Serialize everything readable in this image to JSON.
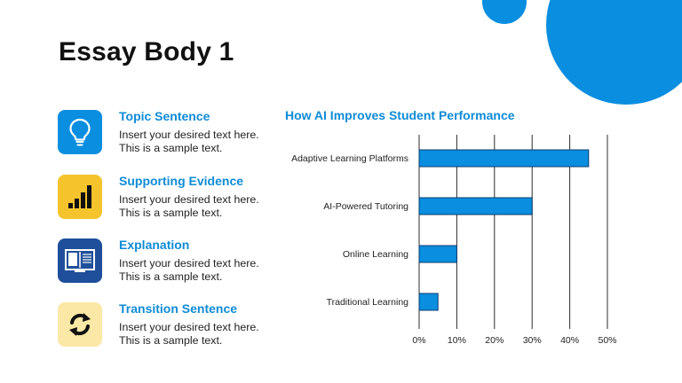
{
  "page": {
    "title": "Essay Body 1"
  },
  "colors": {
    "accent": "#0a8ee0",
    "decor": "#0a8ee0",
    "heading": "#0d8bd6",
    "bar_fill": "#0a8ee0",
    "icon_blue": "#0a8ee0",
    "icon_yellow": "#f5c32c",
    "icon_navy": "#1f4f9a",
    "icon_cream": "#fbe8a6"
  },
  "points": [
    {
      "heading": "Topic Sentence",
      "lines": [
        "Insert your desired text here.",
        "This is a sample text."
      ],
      "icon": "lightbulb-icon"
    },
    {
      "heading": "Supporting Evidence",
      "lines": [
        "Insert your desired text here.",
        "This is a sample text."
      ],
      "icon": "bar-chart-icon"
    },
    {
      "heading": "Explanation",
      "lines": [
        "Insert your desired text here.",
        "This is a sample text."
      ],
      "icon": "book-icon"
    },
    {
      "heading": "Transition Sentence",
      "lines": [
        "Insert your desired text here.",
        "This is a sample text."
      ],
      "icon": "refresh-arrows-icon"
    }
  ],
  "chart_data": {
    "type": "bar",
    "orientation": "horizontal",
    "title": "How AI Improves Student Performance",
    "categories": [
      "Adaptive Learning Platforms",
      "AI-Powered Tutoring",
      "Online Learning",
      "Traditional Learning"
    ],
    "values": [
      0.45,
      0.3,
      0.1,
      0.05
    ],
    "xlim": [
      0,
      0.5
    ],
    "xticks": [
      0,
      0.1,
      0.2,
      0.3,
      0.4,
      0.5
    ],
    "xtick_labels": [
      "0%",
      "10%",
      "20%",
      "30%",
      "40%",
      "50%"
    ],
    "grid": "vertical",
    "legend": "none",
    "xlabel": "",
    "ylabel": ""
  }
}
